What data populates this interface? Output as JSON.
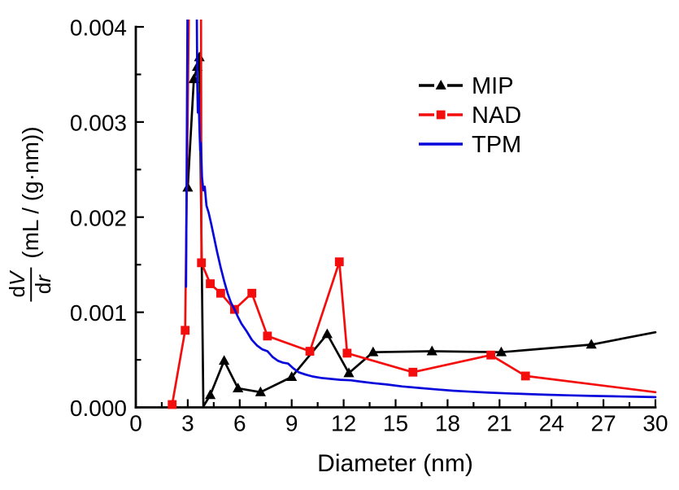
{
  "chart_data": {
    "type": "line",
    "title": "",
    "xlabel": "Diameter (nm)",
    "ylabel": "dV/dr (mL / (g·nm))",
    "ylabel_parts": {
      "d_num": "d",
      "var_num": "V",
      "d_den": "d",
      "var_den": "r",
      "units": "(mL / (g·nm))"
    },
    "xlim": [
      0,
      30
    ],
    "ylim": [
      0,
      0.004
    ],
    "x_major_ticks": [
      0,
      3,
      6,
      9,
      12,
      15,
      18,
      21,
      24,
      27,
      30
    ],
    "x_minor_step": 1.5,
    "y_major_ticks": [
      {
        "value": 0.0,
        "label": "0.000"
      },
      {
        "value": 0.001,
        "label": "0.001"
      },
      {
        "value": 0.002,
        "label": "0.002"
      },
      {
        "value": 0.003,
        "label": "0.003"
      },
      {
        "value": 0.004,
        "label": "0.004"
      }
    ],
    "y_minor_step": 0.0005,
    "grid": false,
    "axis_color": "#000000",
    "legend": {
      "position": "upper-right-inside"
    },
    "series": [
      {
        "name": "MIP",
        "color": "#000000",
        "marker": "triangle",
        "points": [
          [
            3.0,
            0.00231,
            1
          ],
          [
            3.35,
            0.00345,
            1
          ],
          [
            3.55,
            0.00358,
            1
          ],
          [
            3.67,
            0.00368,
            1
          ],
          [
            3.9,
            1e-05,
            0
          ],
          [
            4.3,
            0.00013,
            1
          ],
          [
            5.1,
            0.00049,
            1
          ],
          [
            5.9,
            0.0002,
            1
          ],
          [
            7.2,
            0.00016,
            1
          ],
          [
            9.0,
            0.00032,
            1
          ],
          [
            11.05,
            0.00077,
            1
          ],
          [
            12.3,
            0.00036,
            1
          ],
          [
            13.7,
            0.00058,
            1
          ],
          [
            17.1,
            0.00059,
            1
          ],
          [
            21.1,
            0.00058,
            1
          ],
          [
            26.3,
            0.00066,
            1
          ],
          [
            30,
            0.00079,
            0
          ]
        ]
      },
      {
        "name": "NAD",
        "color": "#F30D0D",
        "marker": "square",
        "points": [
          [
            2.1,
            3e-05,
            1
          ],
          [
            2.85,
            0.00081,
            1
          ],
          [
            3.1,
            0.0047,
            0
          ],
          [
            3.76,
            0.0047,
            0
          ],
          [
            3.79,
            0.00152,
            1
          ],
          [
            4.3,
            0.0013,
            1
          ],
          [
            4.9,
            0.0012,
            1
          ],
          [
            5.7,
            0.00103,
            1
          ],
          [
            6.7,
            0.0012,
            1
          ],
          [
            7.6,
            0.00075,
            1
          ],
          [
            10.05,
            0.00059,
            1
          ],
          [
            11.75,
            0.00153,
            1
          ],
          [
            12.2,
            0.00057,
            1
          ],
          [
            16.0,
            0.00037,
            1
          ],
          [
            20.5,
            0.00055,
            1
          ],
          [
            22.5,
            0.00033,
            1
          ],
          [
            30,
            0.00016,
            0
          ]
        ]
      },
      {
        "name": "TPM",
        "color": "#0707DC",
        "marker": "none",
        "points": [
          [
            2.9,
            0.00127,
            0
          ],
          [
            3.0,
            0.0047,
            0
          ],
          [
            3.5,
            0.0047,
            0
          ],
          [
            3.55,
            0.0034,
            0
          ],
          [
            3.58,
            0.0031,
            0
          ],
          [
            3.62,
            0.0033,
            0
          ],
          [
            3.68,
            0.0029,
            0
          ],
          [
            3.72,
            0.0027,
            0
          ],
          [
            3.76,
            0.00278,
            0
          ],
          [
            3.82,
            0.00242,
            0
          ],
          [
            3.9,
            0.00228,
            0
          ],
          [
            3.98,
            0.00232,
            0
          ],
          [
            4.08,
            0.00212,
            0
          ],
          [
            4.2,
            0.00205,
            0
          ],
          [
            4.35,
            0.00193,
            0
          ],
          [
            4.5,
            0.0018,
            0
          ],
          [
            4.7,
            0.00163,
            0
          ],
          [
            4.9,
            0.00147,
            0
          ],
          [
            5.1,
            0.00133,
            0
          ],
          [
            5.3,
            0.0012,
            0
          ],
          [
            5.5,
            0.0011,
            0
          ],
          [
            5.7,
            0.00103,
            0
          ],
          [
            5.9,
            0.00095,
            0
          ],
          [
            6.1,
            0.00088,
            0
          ],
          [
            6.4,
            0.0008,
            0
          ],
          [
            6.7,
            0.00071,
            0
          ],
          [
            7.0,
            0.00065,
            0
          ],
          [
            7.3,
            0.00061,
            0
          ],
          [
            7.6,
            0.00059,
            0
          ],
          [
            7.9,
            0.00053,
            0
          ],
          [
            8.2,
            0.00049,
            0
          ],
          [
            8.5,
            0.00047,
            0
          ],
          [
            8.8,
            0.00046,
            0
          ],
          [
            9.1,
            0.00041,
            0
          ],
          [
            9.4,
            0.00037,
            0
          ],
          [
            9.8,
            0.000345,
            0
          ],
          [
            10.2,
            0.000325,
            0
          ],
          [
            10.7,
            0.00031,
            0
          ],
          [
            11.2,
            0.0003,
            0
          ],
          [
            11.8,
            0.00029,
            0
          ],
          [
            12.4,
            0.000285,
            0
          ],
          [
            13.0,
            0.00027,
            0
          ],
          [
            13.7,
            0.000255,
            0
          ],
          [
            14.5,
            0.00024,
            0
          ],
          [
            15.4,
            0.00022,
            0
          ],
          [
            16.3,
            0.000205,
            0
          ],
          [
            17.3,
            0.00019,
            0
          ],
          [
            18.3,
            0.000175,
            0
          ],
          [
            19.3,
            0.000165,
            0
          ],
          [
            20.4,
            0.000155,
            0
          ],
          [
            21.5,
            0.000147,
            0
          ],
          [
            22.6,
            0.00014,
            0
          ],
          [
            23.8,
            0.000133,
            0
          ],
          [
            25.0,
            0.000127,
            0
          ],
          [
            26.3,
            0.000121,
            0
          ],
          [
            27.6,
            0.000116,
            0
          ],
          [
            28.8,
            0.000112,
            0
          ],
          [
            30.0,
            0.000108,
            0
          ]
        ]
      }
    ]
  }
}
